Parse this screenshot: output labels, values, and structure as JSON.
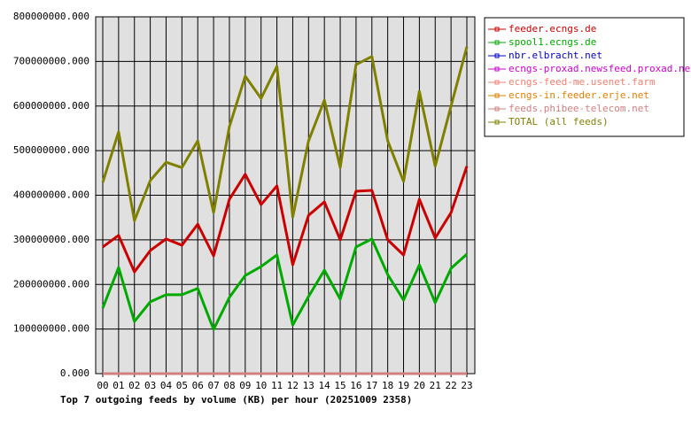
{
  "chart_data": {
    "type": "line",
    "title": "Top 7 outgoing feeds by volume (KB) per hour (20251009 2358)",
    "categories": [
      "00",
      "01",
      "02",
      "03",
      "04",
      "05",
      "06",
      "07",
      "08",
      "09",
      "10",
      "11",
      "12",
      "13",
      "14",
      "15",
      "16",
      "17",
      "18",
      "19",
      "20",
      "21",
      "22",
      "23"
    ],
    "series": [
      {
        "name": "feeder.ecngs.de",
        "color": "#cc0000",
        "values": [
          284000000,
          310000000,
          228000000,
          276000000,
          302000000,
          288000000,
          335000000,
          264000000,
          391000000,
          447000000,
          379000000,
          421000000,
          244000000,
          355000000,
          385000000,
          300000000,
          409000000,
          411000000,
          300000000,
          266000000,
          391000000,
          304000000,
          361000000,
          465000000
        ]
      },
      {
        "name": "spool1.ecngs.de",
        "color": "#00aa00",
        "values": [
          147000000,
          238000000,
          117000000,
          161000000,
          177000000,
          177000000,
          191000000,
          99000000,
          171000000,
          220000000,
          240000000,
          266000000,
          109000000,
          173000000,
          232000000,
          167000000,
          284000000,
          302000000,
          222000000,
          165000000,
          244000000,
          159000000,
          236000000,
          268000000
        ]
      },
      {
        "name": "nbr.elbracht.net",
        "color": "#0000cc",
        "values": [
          0,
          0,
          0,
          0,
          0,
          0,
          0,
          0,
          0,
          0,
          0,
          0,
          0,
          0,
          0,
          0,
          0,
          0,
          0,
          0,
          0,
          0,
          0,
          0
        ]
      },
      {
        "name": "ecngs-proxad.newsfeed.proxad.net",
        "color": "#cc00cc",
        "values": [
          0,
          0,
          0,
          0,
          0,
          0,
          0,
          0,
          0,
          0,
          0,
          0,
          0,
          0,
          0,
          0,
          0,
          0,
          0,
          0,
          0,
          0,
          0,
          0
        ]
      },
      {
        "name": "ecngs-feed-me.usenet.farm",
        "color": "#f08070",
        "values": [
          0,
          0,
          0,
          0,
          0,
          0,
          0,
          0,
          0,
          0,
          0,
          0,
          0,
          0,
          0,
          0,
          0,
          0,
          0,
          0,
          0,
          0,
          0,
          0
        ]
      },
      {
        "name": "ecngs-in.feeder.erje.net",
        "color": "#e08000",
        "values": [
          0,
          0,
          0,
          0,
          0,
          0,
          0,
          0,
          0,
          0,
          0,
          0,
          0,
          0,
          0,
          0,
          0,
          0,
          0,
          0,
          0,
          0,
          0,
          0
        ]
      },
      {
        "name": "feeds.phibee-telecom.net",
        "color": "#d08080",
        "values": [
          0,
          0,
          0,
          0,
          0,
          0,
          0,
          0,
          0,
          0,
          0,
          0,
          0,
          0,
          0,
          0,
          0,
          0,
          0,
          0,
          0,
          0,
          0,
          0
        ]
      },
      {
        "name": "TOTAL (all feeds)",
        "color": "#808000",
        "values": [
          429000000,
          542000000,
          343000000,
          433000000,
          474000000,
          462000000,
          522000000,
          361000000,
          554000000,
          667000000,
          617000000,
          689000000,
          351000000,
          522000000,
          613000000,
          462000000,
          693000000,
          711000000,
          522000000,
          431000000,
          633000000,
          465000000,
          600000000,
          733000000
        ]
      }
    ],
    "ylim": [
      0,
      800000000
    ],
    "yticks": [
      {
        "value": 0,
        "label": "0.000"
      },
      {
        "value": 100000000,
        "label": "100000000.000"
      },
      {
        "value": 200000000,
        "label": "200000000.000"
      },
      {
        "value": 300000000,
        "label": "300000000.000"
      },
      {
        "value": 400000000,
        "label": "400000000.000"
      },
      {
        "value": 500000000,
        "label": "500000000.000"
      },
      {
        "value": 600000000,
        "label": "600000000.000"
      },
      {
        "value": 700000000,
        "label": "700000000.000"
      },
      {
        "value": 800000000,
        "label": "800000000.000"
      }
    ],
    "grid": true,
    "legend": "right"
  }
}
